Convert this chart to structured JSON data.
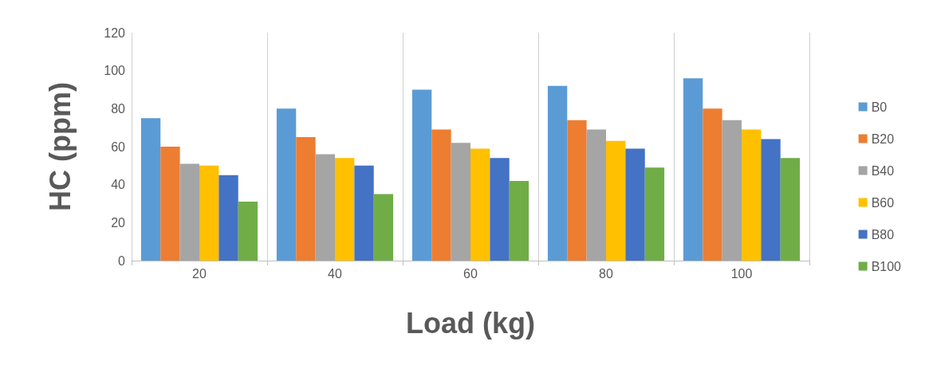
{
  "chart_data": {
    "type": "bar",
    "xlabel": "Load (kg)",
    "ylabel": "HC (ppm)",
    "categories": [
      "20",
      "40",
      "60",
      "80",
      "100"
    ],
    "series": [
      {
        "name": "B0",
        "color": "#5b9bd5",
        "values": [
          75,
          80,
          90,
          92,
          96
        ]
      },
      {
        "name": "B20",
        "color": "#ed7d31",
        "values": [
          60,
          65,
          69,
          74,
          80
        ]
      },
      {
        "name": "B40",
        "color": "#a5a5a5",
        "values": [
          51,
          56,
          62,
          69,
          74
        ]
      },
      {
        "name": "B60",
        "color": "#ffc000",
        "values": [
          50,
          54,
          59,
          63,
          69
        ]
      },
      {
        "name": "B80",
        "color": "#4472c4",
        "values": [
          45,
          50,
          54,
          59,
          64
        ]
      },
      {
        "name": "B100",
        "color": "#70ad47",
        "values": [
          31,
          35,
          42,
          49,
          54
        ]
      }
    ],
    "ylim": [
      0,
      120
    ],
    "yticks": [
      0,
      20,
      40,
      60,
      80,
      100,
      120
    ],
    "grid": "x",
    "legend": "right"
  }
}
